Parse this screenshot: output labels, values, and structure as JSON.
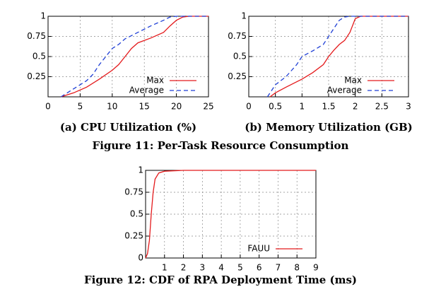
{
  "chart_data": [
    {
      "type": "line",
      "title": "(a) CPU Utilization (%)",
      "xlim": [
        0,
        25
      ],
      "xticks": [
        0,
        5,
        10,
        15,
        20,
        25
      ],
      "ylim": [
        0,
        1
      ],
      "yticks": [
        0.25,
        0.5,
        {
          "value": 0.75,
          "label": "0.75"
        },
        1
      ],
      "grid": true,
      "legend": "lower right",
      "series": [
        {
          "name": "Max",
          "color": "#e41a1c",
          "dash": "solid",
          "x": [
            2,
            4,
            6,
            8,
            10,
            11,
            12,
            13,
            14,
            16,
            18,
            19,
            20,
            21,
            22,
            25
          ],
          "values": [
            0,
            0.05,
            0.12,
            0.22,
            0.33,
            0.4,
            0.5,
            0.6,
            0.67,
            0.73,
            0.8,
            0.88,
            0.95,
            0.99,
            1,
            1
          ]
        },
        {
          "name": "Average",
          "color": "#1f3fd6",
          "dash": "dashed",
          "x": [
            2,
            4,
            6,
            7,
            8,
            9,
            10,
            11,
            12,
            13,
            14,
            16,
            18,
            19,
            20,
            25
          ],
          "values": [
            0,
            0.1,
            0.2,
            0.28,
            0.4,
            0.5,
            0.6,
            0.65,
            0.72,
            0.76,
            0.8,
            0.88,
            0.95,
            0.99,
            1,
            1
          ]
        }
      ]
    },
    {
      "type": "line",
      "title": "(b) Memory Utilization (GB)",
      "xlim": [
        0,
        3
      ],
      "xticks": [
        0,
        0.5,
        1,
        1.5,
        2,
        2.5,
        3
      ],
      "ylim": [
        0,
        1
      ],
      "yticks": [
        0.25,
        0.5,
        0.75,
        1
      ],
      "grid": true,
      "legend": "lower right",
      "series": [
        {
          "name": "Max",
          "color": "#e41a1c",
          "dash": "solid",
          "x": [
            0.4,
            0.5,
            0.7,
            1,
            1.2,
            1.4,
            1.5,
            1.6,
            1.7,
            1.8,
            1.9,
            2,
            2.1,
            2.5,
            3
          ],
          "values": [
            0,
            0.05,
            0.12,
            0.22,
            0.3,
            0.4,
            0.5,
            0.58,
            0.65,
            0.7,
            0.8,
            0.97,
            1,
            1,
            1
          ]
        },
        {
          "name": "Average",
          "color": "#1f3fd6",
          "dash": "dashed",
          "x": [
            0.35,
            0.5,
            0.7,
            0.9,
            1,
            1.2,
            1.4,
            1.5,
            1.6,
            1.7,
            1.8,
            1.9,
            2,
            2.5,
            3
          ],
          "values": [
            0,
            0.15,
            0.25,
            0.4,
            0.5,
            0.57,
            0.65,
            0.75,
            0.85,
            0.95,
            0.99,
            1,
            1,
            1,
            1
          ]
        }
      ]
    },
    {
      "type": "line",
      "xlim": [
        0,
        9
      ],
      "xticks": [
        1,
        2,
        3,
        4,
        5,
        6,
        7,
        8,
        9
      ],
      "ylim": [
        0,
        1
      ],
      "yticks": [
        0,
        0.25,
        0.5,
        0.75,
        1
      ],
      "grid": true,
      "legend": "lower right",
      "series": [
        {
          "name": "FAUU",
          "color": "#e41a1c",
          "dash": "solid",
          "x": [
            0,
            0.1,
            0.2,
            0.3,
            0.4,
            0.5,
            0.7,
            1,
            2,
            9
          ],
          "values": [
            0,
            0.05,
            0.2,
            0.5,
            0.75,
            0.9,
            0.97,
            0.99,
            1,
            1
          ]
        }
      ]
    }
  ],
  "figure_captions": [
    "Figure 11: Per-Task Resource Consumption",
    "Figure 12: CDF of RPA Deployment Time (ms)"
  ]
}
